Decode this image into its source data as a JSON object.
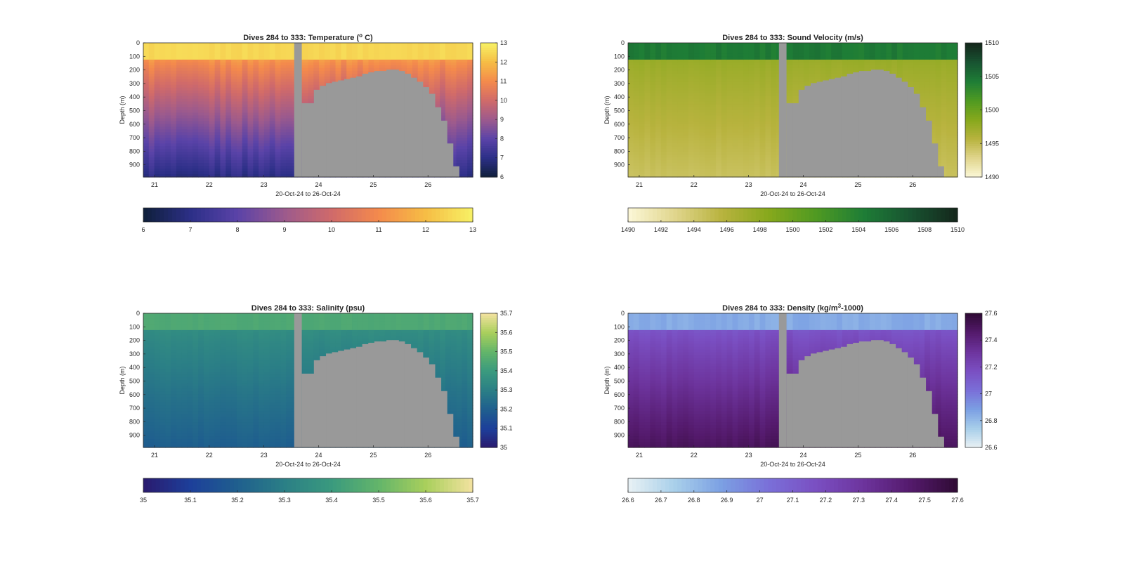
{
  "chart_data": [
    {
      "type": "heatmap",
      "title": "Dives 284 to 333: Temperature (",
      "title_sup": "o",
      "title_end": " C)",
      "xlabel": "20-Oct-24 to 26-Oct-24",
      "ylabel": "Depth (m)",
      "x_ticks": [
        "21",
        "22",
        "23",
        "24",
        "25",
        "26"
      ],
      "y_ticks": [
        "0",
        "100",
        "200",
        "300",
        "400",
        "500",
        "600",
        "700",
        "800",
        "900"
      ],
      "ylim": [
        0,
        990
      ],
      "colorbar_ticks": [
        "6",
        "7",
        "8",
        "9",
        "10",
        "11",
        "12",
        "13"
      ],
      "clim": [
        6,
        13
      ],
      "colormap": [
        "#0f1f3a",
        "#2c2f87",
        "#5a43a8",
        "#9c5a8d",
        "#d06a6a",
        "#f48a4c",
        "#f6bd45",
        "#f7f165"
      ],
      "profile": {
        "surface": 12.5,
        "mid": 11.2,
        "deep": 7.0
      },
      "no_data_color": "#999999"
    },
    {
      "type": "heatmap",
      "title": "Dives 284 to 333: Sound Velocity (m/s)",
      "xlabel": "20-Oct-24 to 26-Oct-24",
      "ylabel": "Depth (m)",
      "x_ticks": [
        "21",
        "22",
        "23",
        "24",
        "25",
        "26"
      ],
      "y_ticks": [
        "0",
        "100",
        "200",
        "300",
        "400",
        "500",
        "600",
        "700",
        "800",
        "900"
      ],
      "ylim": [
        0,
        990
      ],
      "colorbar_ticks": [
        "1490",
        "1495",
        "1500",
        "1505",
        "1510"
      ],
      "hcolorbar_ticks": [
        "1490",
        "1492",
        "1494",
        "1496",
        "1498",
        "1500",
        "1502",
        "1504",
        "1506",
        "1508",
        "1510"
      ],
      "clim": [
        1490,
        1510
      ],
      "colormap": [
        "#fcf8d8",
        "#e0d58c",
        "#b8b33e",
        "#86a81c",
        "#4f9a22",
        "#1e7d36",
        "#185331",
        "#14261b"
      ],
      "profile": {
        "surface": 1504.5,
        "mid": 1497.5,
        "deep": 1494.5
      },
      "no_data_color": "#999999"
    },
    {
      "type": "heatmap",
      "title": "Dives 284 to 333: Salinity (psu)",
      "xlabel": "20-Oct-24 to 26-Oct-24",
      "ylabel": "Depth (m)",
      "x_ticks": [
        "21",
        "22",
        "23",
        "24",
        "25",
        "26"
      ],
      "y_ticks": [
        "0",
        "100",
        "200",
        "300",
        "400",
        "500",
        "600",
        "700",
        "800",
        "900"
      ],
      "ylim": [
        0,
        990
      ],
      "colorbar_ticks": [
        "35",
        "35.1",
        "35.2",
        "35.3",
        "35.4",
        "35.5",
        "35.6",
        "35.7"
      ],
      "clim": [
        35,
        35.7
      ],
      "colormap": [
        "#2a1a6e",
        "#1d3f9a",
        "#1f5f8e",
        "#2b7f86",
        "#3a9a7e",
        "#63b56a",
        "#a9cf5c",
        "#f3e2a0"
      ],
      "profile": {
        "surface": 35.45,
        "mid": 35.35,
        "deep": 35.2
      },
      "no_data_color": "#999999"
    },
    {
      "type": "heatmap",
      "title": "Dives 284 to 333: Density (kg/m",
      "title_sup": "3",
      "title_end": "-1000)",
      "xlabel": "20-Oct-24 to 26-Oct-24",
      "ylabel": "Depth (m)",
      "x_ticks": [
        "21",
        "22",
        "23",
        "24",
        "25",
        "26"
      ],
      "y_ticks": [
        "0",
        "100",
        "200",
        "300",
        "400",
        "500",
        "600",
        "700",
        "800",
        "900"
      ],
      "ylim": [
        0,
        990
      ],
      "colorbar_ticks": [
        "26.6",
        "26.8",
        "27",
        "27.2",
        "27.4",
        "27.6"
      ],
      "hcolorbar_ticks": [
        "26.6",
        "26.7",
        "26.8",
        "26.9",
        "27",
        "27.1",
        "27.2",
        "27.3",
        "27.4",
        "27.5",
        "27.6"
      ],
      "clim": [
        26.6,
        27.6
      ],
      "colormap": [
        "#e9f1f4",
        "#a8cfea",
        "#7b9fe3",
        "#7a6fd8",
        "#7a4fc2",
        "#6d349d",
        "#541a6c",
        "#2f0a34"
      ],
      "profile": {
        "surface": 26.85,
        "mid": 27.15,
        "deep": 27.5
      },
      "no_data_color": "#999999"
    }
  ]
}
